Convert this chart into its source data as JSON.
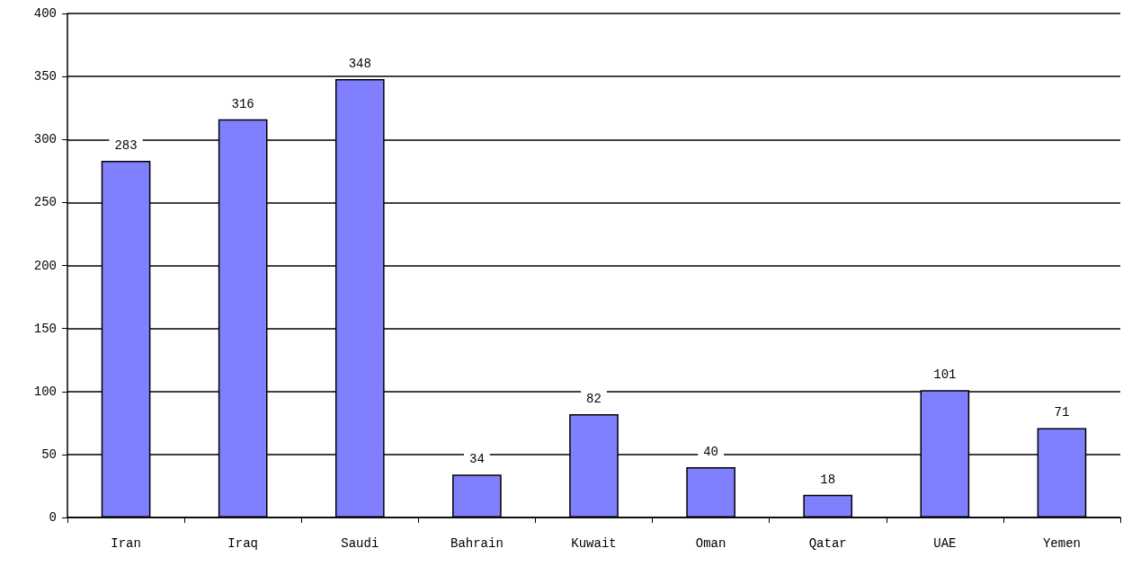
{
  "chart_data": {
    "type": "bar",
    "categories": [
      "Iran",
      "Iraq",
      "Saudi",
      "Bahrain",
      "Kuwait",
      "Oman",
      "Qatar",
      "UAE",
      "Yemen"
    ],
    "values": [
      283,
      316,
      348,
      34,
      82,
      40,
      18,
      101,
      71
    ],
    "color": "#8080ff",
    "ylim": [
      0,
      400
    ],
    "yticks": [
      0,
      50,
      100,
      150,
      200,
      250,
      300,
      350,
      400
    ],
    "grid": "y",
    "data_labels": true
  }
}
